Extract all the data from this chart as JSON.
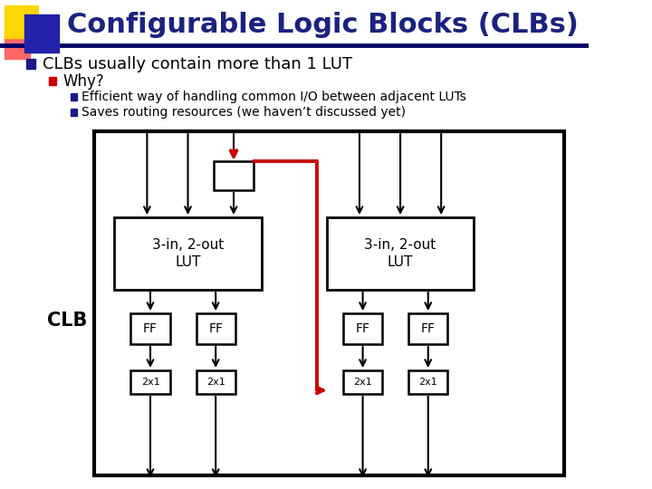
{
  "title": "Configurable Logic Blocks (CLBs)",
  "title_color": "#1a237e",
  "title_fontsize": 22,
  "bg_color": "#ffffff",
  "header_line_color": "#000066",
  "bullet1": "CLBs usually contain more than 1 LUT",
  "bullet2": "Why?",
  "sub_bullet1": "Efficient way of handling common I/O between adjacent LUTs",
  "sub_bullet2": "Saves routing resources (we haven’t discussed yet)",
  "clb_label": "CLB",
  "lut_label": "3-in, 2-out\nLUT",
  "mux_label": "2x1",
  "ff_label": "FF",
  "bullet_color1": "#1a1a8c",
  "bullet_color2": "#cc0000",
  "sub_bullet_color": "#1a1a8c",
  "diagram_border_color": "#000000",
  "red_line_color": "#cc0000",
  "arrow_color": "#000000"
}
